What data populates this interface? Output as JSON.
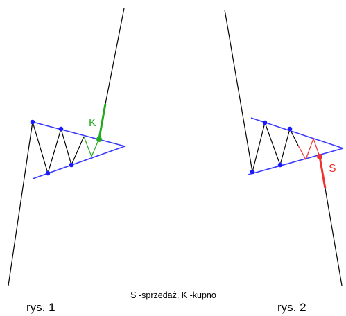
{
  "labels": {
    "fig1_caption": "rys. 1",
    "fig2_caption": "rys. 2",
    "legend": "S -sprzedaż, K -kupno",
    "buy_marker": "K",
    "sell_marker": "S"
  },
  "colors": {
    "price_line": "#000000",
    "trendline": "#3a3aff",
    "pivot_point": "#1a1aff",
    "buy": "#22aa22",
    "sell": "#ee3333"
  }
}
